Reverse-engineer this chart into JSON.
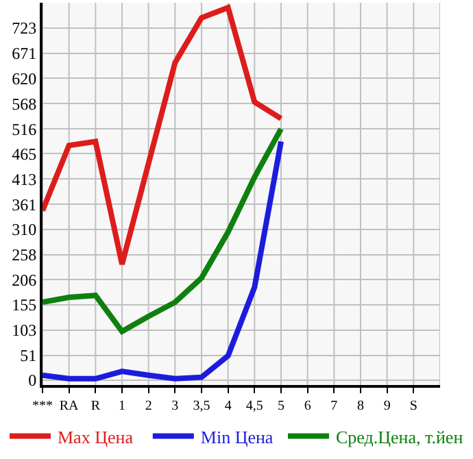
{
  "chart_data": {
    "type": "line",
    "categories": [
      "***",
      "RA",
      "R",
      "1",
      "2",
      "3",
      "3,5",
      "4",
      "4,5",
      "5",
      "6",
      "7",
      "8",
      "9",
      "S",
      null
    ],
    "series": [
      {
        "name": "Max Цена",
        "color": "#dd1c1c",
        "values": [
          348,
          482,
          490,
          238,
          445,
          652,
          744,
          765,
          571,
          537,
          null,
          null,
          null,
          null,
          null,
          null
        ]
      },
      {
        "name": "Min Цена",
        "color": "#1c1cdd",
        "values": [
          10,
          3,
          3,
          18,
          10,
          3,
          6,
          50,
          191,
          490,
          null,
          null,
          null,
          null,
          null,
          null
        ]
      },
      {
        "name": "Сред.Цена, т.йен",
        "color": "#0e800e",
        "values": [
          160,
          170,
          174,
          100,
          131,
          160,
          210,
          304,
          417,
          516,
          null,
          null,
          null,
          null,
          null,
          null
        ]
      }
    ],
    "ylim": [
      -10,
      775
    ],
    "yticks": [
      0,
      51,
      103,
      155,
      206,
      258,
      310,
      361,
      413,
      465,
      516,
      568,
      620,
      671,
      723
    ],
    "grid": true,
    "legend": "bottom",
    "marker": "none",
    "line_style": "solid"
  }
}
